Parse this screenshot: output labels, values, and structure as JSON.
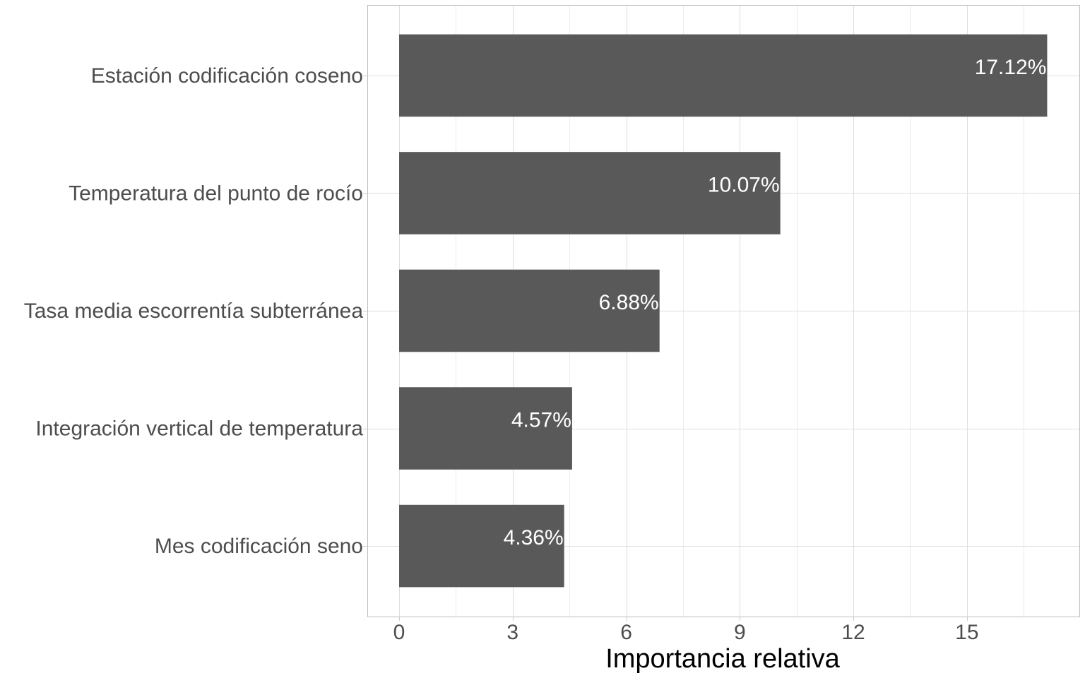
{
  "chart_data": {
    "type": "bar",
    "orientation": "horizontal",
    "categories": [
      "Estación codificación coseno",
      "Temperatura del punto de rocío",
      "Tasa media escorrentía subterránea",
      "Integración vertical de temperatura",
      "Mes codificación seno"
    ],
    "values": [
      17.12,
      10.07,
      6.88,
      4.57,
      4.36
    ],
    "data_labels": [
      "17.12%",
      "10.07%",
      "6.88%",
      "4.57%",
      "4.36%"
    ],
    "xlabel": "Importancia relativa",
    "ylabel": "",
    "xlim": [
      -0.84,
      17.97
    ],
    "x_ticks": [
      "0",
      "3",
      "6",
      "9",
      "12",
      "15"
    ],
    "grid": true,
    "legend": "none",
    "colors": {
      "bar": "#595959",
      "grid": "#dedede",
      "panel_border": "#bdbdbd",
      "tick_text": "#4d4d4d",
      "title_text": "#000000",
      "data_label_text": "#ffffff"
    }
  }
}
